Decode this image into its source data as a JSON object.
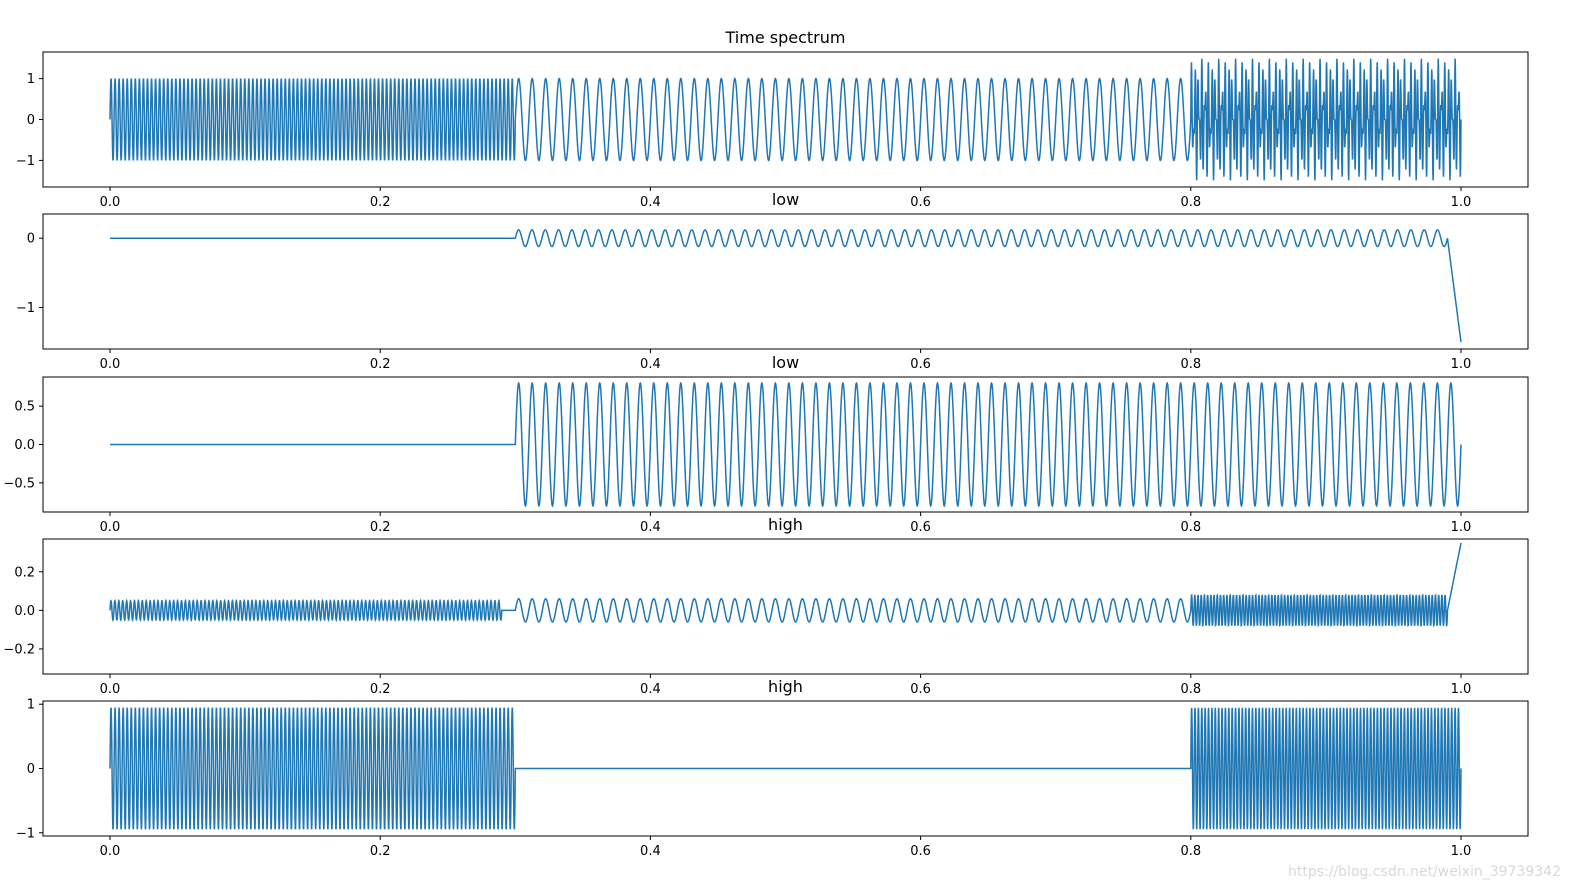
{
  "watermark": "https://blog.csdn.net/weixin_39739342",
  "colors": {
    "line": "#1f77b4",
    "axes": "#000000"
  },
  "chart_data": [
    {
      "type": "line",
      "title": "Time spectrum",
      "xlim": [
        0.0,
        1.0
      ],
      "ylim": [
        -1.65,
        1.65
      ],
      "xticks": [
        "0.0",
        "0.2",
        "0.4",
        "0.6",
        "0.8",
        "1.0"
      ],
      "yticks": [
        {
          "v": 1,
          "label": "1"
        },
        {
          "v": 0,
          "label": "0"
        },
        {
          "v": -1,
          "label": "−1"
        }
      ],
      "series": [
        {
          "segments": [
            {
              "x": [
                0.0,
                0.3
              ],
              "cycles": 100,
              "amp": 1.0
            },
            {
              "x": [
                0.3,
                0.8
              ],
              "cycles": 50,
              "amp": 1.0
            },
            {
              "x": [
                0.8,
                1.0
              ],
              "cycles": 80,
              "amp": 1.5,
              "note": "sum of two tones"
            }
          ]
        }
      ]
    },
    {
      "type": "line",
      "title": "low",
      "xlim": [
        0.0,
        1.0
      ],
      "ylim": [
        -1.6,
        0.35
      ],
      "xticks": [
        "0.0",
        "0.2",
        "0.4",
        "0.6",
        "0.8",
        "1.0"
      ],
      "yticks": [
        {
          "v": 0,
          "label": "0"
        },
        {
          "v": -1,
          "label": "−1"
        }
      ],
      "series": [
        {
          "segments": [
            {
              "x": [
                0.0,
                0.29
              ],
              "cycles": 0,
              "amp": 0.0
            },
            {
              "x": [
                0.3,
                0.99
              ],
              "cycles": 70,
              "amp": 0.12
            },
            {
              "x": [
                0.99,
                1.0
              ],
              "end_value": -1.5
            }
          ]
        }
      ]
    },
    {
      "type": "line",
      "title": "low",
      "xlim": [
        0.0,
        1.0
      ],
      "ylim": [
        -0.88,
        0.88
      ],
      "xticks": [
        "0.0",
        "0.2",
        "0.4",
        "0.6",
        "0.8",
        "1.0"
      ],
      "yticks": [
        {
          "v": 0.5,
          "label": "0.5"
        },
        {
          "v": 0.0,
          "label": "0.0"
        },
        {
          "v": -0.5,
          "label": "−0.5"
        }
      ],
      "series": [
        {
          "segments": [
            {
              "x": [
                0.0,
                0.29
              ],
              "cycles": 0,
              "amp": 0.0
            },
            {
              "x": [
                0.3,
                1.0
              ],
              "cycles": 70,
              "amp": 0.8
            }
          ]
        }
      ]
    },
    {
      "type": "line",
      "title": "high",
      "xlim": [
        0.0,
        1.0
      ],
      "ylim": [
        -0.33,
        0.37
      ],
      "xticks": [
        "0.0",
        "0.2",
        "0.4",
        "0.6",
        "0.8",
        "1.0"
      ],
      "yticks": [
        {
          "v": 0.2,
          "label": "0.2"
        },
        {
          "v": 0.0,
          "label": "0.0"
        },
        {
          "v": -0.2,
          "label": "−0.2"
        }
      ],
      "series": [
        {
          "segments": [
            {
              "x": [
                0.0,
                0.29
              ],
              "cycles": 100,
              "amp": 0.05
            },
            {
              "x": [
                0.3,
                0.8
              ],
              "cycles": 50,
              "amp": 0.06
            },
            {
              "x": [
                0.8,
                0.99
              ],
              "cycles": 80,
              "amp": 0.08
            },
            {
              "x": [
                0.99,
                1.0
              ],
              "end_value": 0.35
            }
          ]
        }
      ]
    },
    {
      "type": "line",
      "title": "high",
      "xlim": [
        0.0,
        1.0
      ],
      "ylim": [
        -1.05,
        1.05
      ],
      "xticks": [
        "0.0",
        "0.2",
        "0.4",
        "0.6",
        "0.8",
        "1.0"
      ],
      "yticks": [
        {
          "v": 1,
          "label": "1"
        },
        {
          "v": 0,
          "label": "0"
        },
        {
          "v": -1,
          "label": "−1"
        }
      ],
      "series": [
        {
          "segments": [
            {
              "x": [
                0.0,
                0.3
              ],
              "cycles": 100,
              "amp": 0.95
            },
            {
              "x": [
                0.3,
                0.8
              ],
              "cycles": 0,
              "amp": 0.0
            },
            {
              "x": [
                0.8,
                1.0
              ],
              "cycles": 80,
              "amp": 0.95
            }
          ]
        }
      ]
    }
  ]
}
